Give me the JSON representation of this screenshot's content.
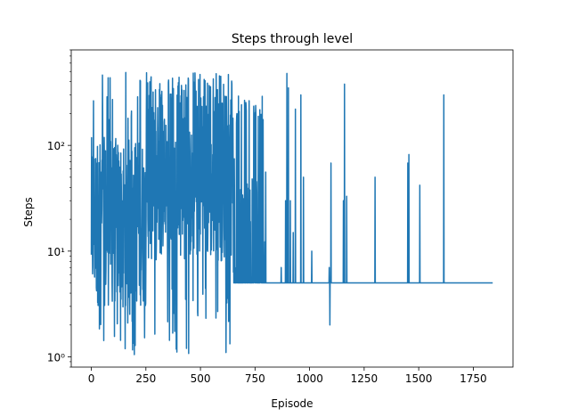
{
  "chart_data": {
    "type": "line",
    "title": "Steps through level",
    "xlabel": "Episode",
    "ylabel": "Steps",
    "yscale": "log",
    "xlim": [
      -92,
      1932
    ],
    "ylim": [
      0.8,
      800
    ],
    "grid": false,
    "legend": "none",
    "x_ticks": [
      0,
      250,
      500,
      750,
      1000,
      1250,
      1500,
      1750
    ],
    "x_tick_labels": [
      "0",
      "250",
      "500",
      "750",
      "1000",
      "1250",
      "1500",
      "1750"
    ],
    "y_ticks": [
      1,
      10,
      100
    ],
    "y_tick_labels": [
      "10⁰",
      "10¹",
      "10²"
    ],
    "series": [
      {
        "color": "#1f77b4",
        "episodes": 1840,
        "phases": [
          {
            "x_range": [
              0,
              250
            ],
            "y_range": [
              1,
              500
            ],
            "description": "highly variable"
          },
          {
            "x_range": [
              250,
              650
            ],
            "y_range": [
              1,
              500
            ],
            "description": "highly variable"
          },
          {
            "x_range": [
              650,
              800
            ],
            "y_range": [
              5,
              300
            ],
            "description": "variable, converging"
          },
          {
            "x_range": [
              800,
              1840
            ],
            "y_baseline": 5,
            "description": "flat with spikes"
          }
        ],
        "spikes": [
          {
            "x": 870,
            "y": 7
          },
          {
            "x": 890,
            "y": 30
          },
          {
            "x": 896,
            "y": 480
          },
          {
            "x": 903,
            "y": 350
          },
          {
            "x": 912,
            "y": 30
          },
          {
            "x": 925,
            "y": 15
          },
          {
            "x": 935,
            "y": 220
          },
          {
            "x": 960,
            "y": 300
          },
          {
            "x": 972,
            "y": 50
          },
          {
            "x": 1010,
            "y": 10
          },
          {
            "x": 1090,
            "y": 7
          },
          {
            "x": 1093,
            "y": 2
          },
          {
            "x": 1098,
            "y": 68
          },
          {
            "x": 1155,
            "y": 30
          },
          {
            "x": 1160,
            "y": 380
          },
          {
            "x": 1170,
            "y": 33
          },
          {
            "x": 1300,
            "y": 50
          },
          {
            "x": 1450,
            "y": 68
          },
          {
            "x": 1455,
            "y": 82
          },
          {
            "x": 1505,
            "y": 42
          },
          {
            "x": 1615,
            "y": 300
          }
        ]
      }
    ]
  }
}
